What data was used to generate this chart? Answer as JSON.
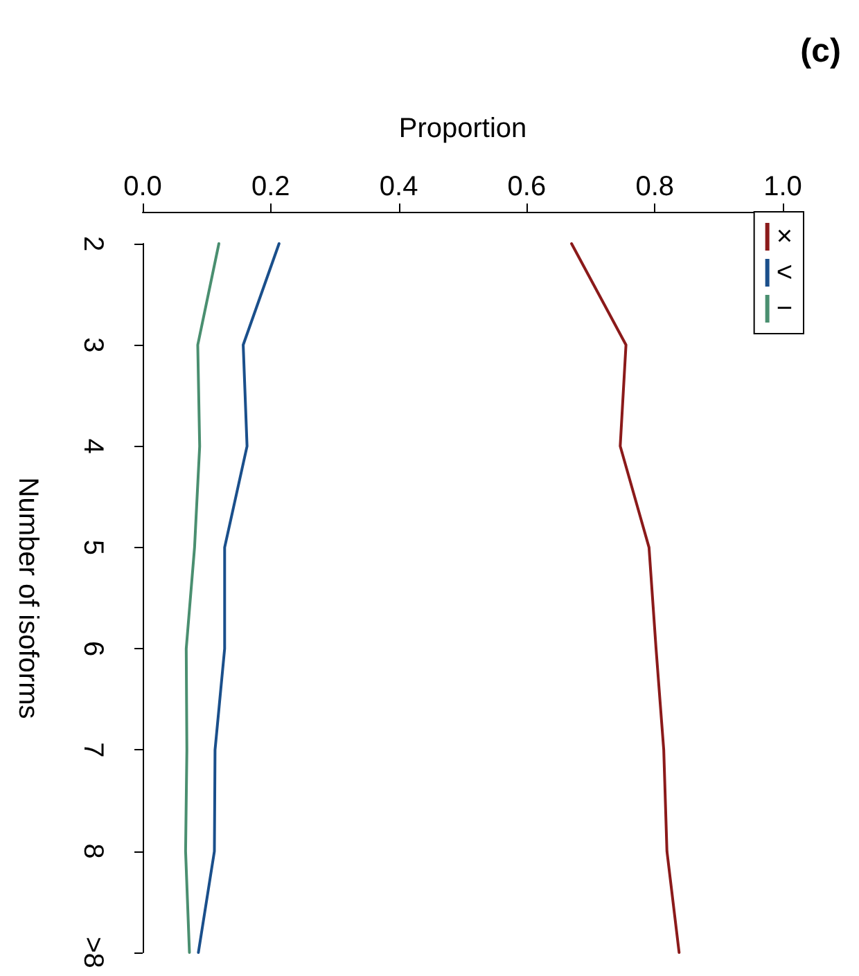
{
  "chart_data": {
    "type": "line",
    "title": "(c)",
    "xlabel": "Proportion",
    "ylabel": "Number of isoforms",
    "orientation": "horizontal",
    "categories": [
      "2",
      "3",
      "4",
      "5",
      "6",
      "7",
      "8",
      ">8"
    ],
    "series": [
      {
        "name": "×",
        "color": "#8b1a1a",
        "values": [
          0.67,
          0.755,
          0.746,
          0.791,
          0.802,
          0.814,
          0.819,
          0.838
        ]
      },
      {
        "name": "<",
        "color": "#1a4f8b",
        "values": [
          0.213,
          0.157,
          0.163,
          0.128,
          0.128,
          0.113,
          0.112,
          0.087
        ]
      },
      {
        "name": "−",
        "color": "#4a8f70",
        "values": [
          0.119,
          0.086,
          0.089,
          0.081,
          0.068,
          0.069,
          0.067,
          0.073
        ]
      }
    ],
    "xlim": [
      0,
      1
    ],
    "xticks": [
      {
        "value": 0,
        "label": "0.0"
      },
      0.2,
      0.4,
      0.6,
      0.8,
      {
        "value": 1,
        "label": "1.0"
      }
    ],
    "grid": false,
    "legend": "top right",
    "marker": "none",
    "line_style": "solid"
  }
}
